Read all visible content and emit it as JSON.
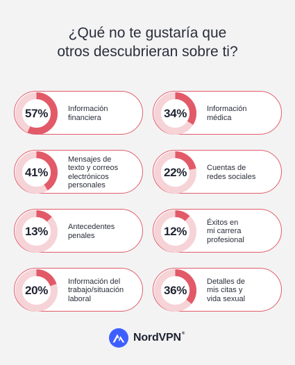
{
  "title_lines": [
    "¿Qué no te gustaría que",
    "otros descubrieran sobre ti?"
  ],
  "chart_data": {
    "type": "donut",
    "title": "¿Qué no te gustaría que otros descubrieran sobre ti?",
    "items": [
      {
        "label": "Información\nfinanciera",
        "value": 57,
        "display": "57%"
      },
      {
        "label": "Información\nmédica",
        "value": 34,
        "display": "34%"
      },
      {
        "label": "Mensajes de\ntexto y correos\nelectrónicos\npersonales",
        "value": 41,
        "display": "41%"
      },
      {
        "label": "Cuentas de\nredes sociales",
        "value": 22,
        "display": "22%"
      },
      {
        "label": "Antecedentes\npenales",
        "value": 13,
        "display": "13%"
      },
      {
        "label": "Éxitos en\nmi carrera\nprofesional",
        "value": 12,
        "display": "12%"
      },
      {
        "label": "Información del\ntrabajo/situación\nlaboral",
        "value": 20,
        "display": "20%"
      },
      {
        "label": "Detalles de\nmis citas y\nvida sexual",
        "value": 36,
        "display": "36%"
      }
    ]
  },
  "colors": {
    "accent": "#e25a68",
    "track": "#f6d3d7",
    "card_border": "#e25a68",
    "background": "#f3f3f4"
  },
  "brand": {
    "name": "NordVPN",
    "tm": "®",
    "icon": "nordvpn-mountain-icon"
  }
}
